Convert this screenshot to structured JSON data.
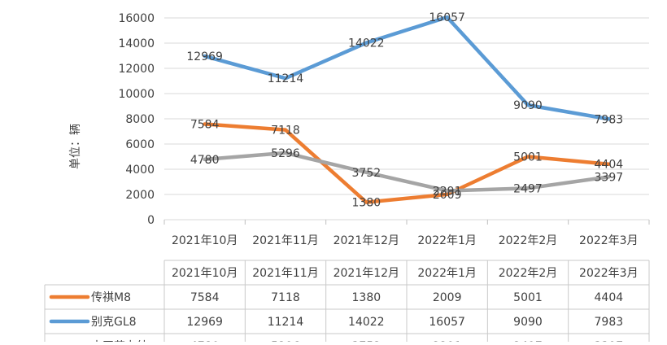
{
  "chart_data": {
    "type": "line",
    "categories": [
      "2021年10月",
      "2021年11月",
      "2021年12月",
      "2022年1月",
      "2022年2月",
      "2022年3月"
    ],
    "ylabel": "单位：辆",
    "ylim": [
      0,
      16000
    ],
    "yticks": [
      0,
      2000,
      4000,
      6000,
      8000,
      10000,
      12000,
      14000,
      16000
    ],
    "grid": true,
    "legend": "data-table",
    "series": [
      {
        "name": "传祺M8",
        "color": "#ED7D31",
        "values": [
          7584,
          7118,
          1380,
          2009,
          5001,
          4404
        ]
      },
      {
        "name": "别克GL8",
        "color": "#5B9BD5",
        "values": [
          12969,
          11214,
          14022,
          16057,
          9090,
          7983
        ]
      },
      {
        "name": "本田艾力绅",
        "color": "#A5A5A5",
        "values": [
          4780,
          5296,
          3752,
          2291,
          2497,
          3397
        ]
      }
    ]
  }
}
